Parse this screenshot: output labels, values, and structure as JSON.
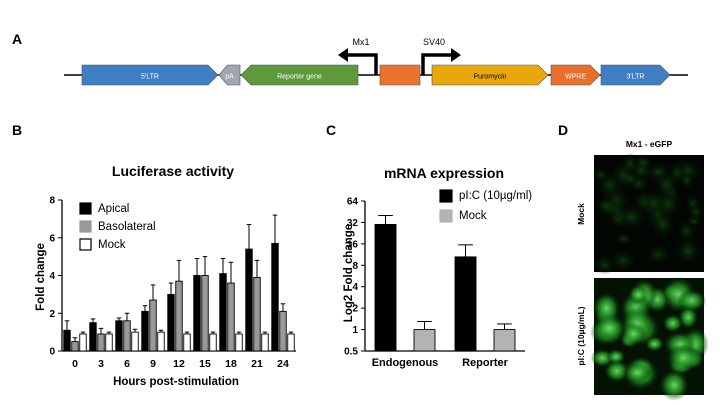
{
  "panels": {
    "a": "A",
    "b": "B",
    "c": "C",
    "d": "D"
  },
  "construct": {
    "elements": [
      {
        "label": "5'LTR",
        "color": "#3f7fc4",
        "direction": "right"
      },
      {
        "label": "pA",
        "color": "#9ea7b2",
        "direction": "left"
      },
      {
        "label": "Reporter gene",
        "color": "#5e9a3c",
        "direction": "left"
      },
      {
        "label": "",
        "color": "#e8742e",
        "direction": "none"
      },
      {
        "label": "Puromycin",
        "color": "#e8a80c",
        "direction": "right"
      },
      {
        "label": "WPRE",
        "color": "#e86f2c",
        "direction": "right"
      },
      {
        "label": "3'LTR",
        "color": "#3f7fc4",
        "direction": "right"
      }
    ],
    "promoters": [
      {
        "label": "Mx1",
        "direction": "left"
      },
      {
        "label": "SV40",
        "direction": "right"
      }
    ]
  },
  "image_panel": {
    "title": "Mx1 - eGFP",
    "rows": [
      "Mock",
      "pI:C (10µg/mL)"
    ]
  },
  "chart_data": [
    {
      "type": "bar",
      "title": "Luciferase activity",
      "xlabel": "Hours post-stimulation",
      "ylabel": "Fold change",
      "ylim": [
        0,
        8
      ],
      "yticks": [
        "0",
        "2",
        "4",
        "6",
        "8"
      ],
      "categories": [
        "0",
        "3",
        "6",
        "9",
        "12",
        "15",
        "18",
        "21",
        "24"
      ],
      "legend_position": "top-left",
      "series": [
        {
          "name": "Apical",
          "color": "#000000",
          "values": [
            1.1,
            1.5,
            1.6,
            2.1,
            3.0,
            4.0,
            4.1,
            5.4,
            5.7
          ],
          "errors": [
            0.5,
            0.2,
            0.15,
            0.3,
            0.6,
            0.9,
            0.8,
            1.3,
            1.5
          ]
        },
        {
          "name": "Basolateral",
          "color": "#999999",
          "values": [
            0.5,
            0.9,
            1.6,
            2.7,
            3.7,
            4.0,
            3.6,
            3.9,
            2.1
          ],
          "errors": [
            0.2,
            0.3,
            0.4,
            0.8,
            1.1,
            1.0,
            1.1,
            0.9,
            0.4
          ]
        },
        {
          "name": "Mock",
          "color": "#ffffff",
          "values": [
            0.9,
            0.9,
            1.0,
            1.0,
            0.9,
            0.9,
            0.9,
            0.9,
            0.9
          ],
          "errors": [
            0.1,
            0.1,
            0.15,
            0.1,
            0.1,
            0.1,
            0.1,
            0.1,
            0.1
          ]
        }
      ]
    },
    {
      "type": "bar",
      "title": "mRNA expression",
      "xlabel": "",
      "ylabel": "Log2 Fold change",
      "y_scale": "log2",
      "ylim": [
        0.5,
        64
      ],
      "yticks": [
        "0.5",
        "1",
        "2",
        "4",
        "8",
        "16",
        "32",
        "64"
      ],
      "categories": [
        "Endogenous",
        "Reporter"
      ],
      "legend_position": "top-right",
      "series": [
        {
          "name": "pI:C (10µg/ml)",
          "color": "#000000",
          "values": [
            30,
            10.5
          ],
          "errors": [
            10,
            5
          ]
        },
        {
          "name": "Mock",
          "color": "#b3b3b3",
          "values": [
            1.0,
            1.0
          ],
          "errors": [
            0.3,
            0.2
          ]
        }
      ]
    }
  ]
}
